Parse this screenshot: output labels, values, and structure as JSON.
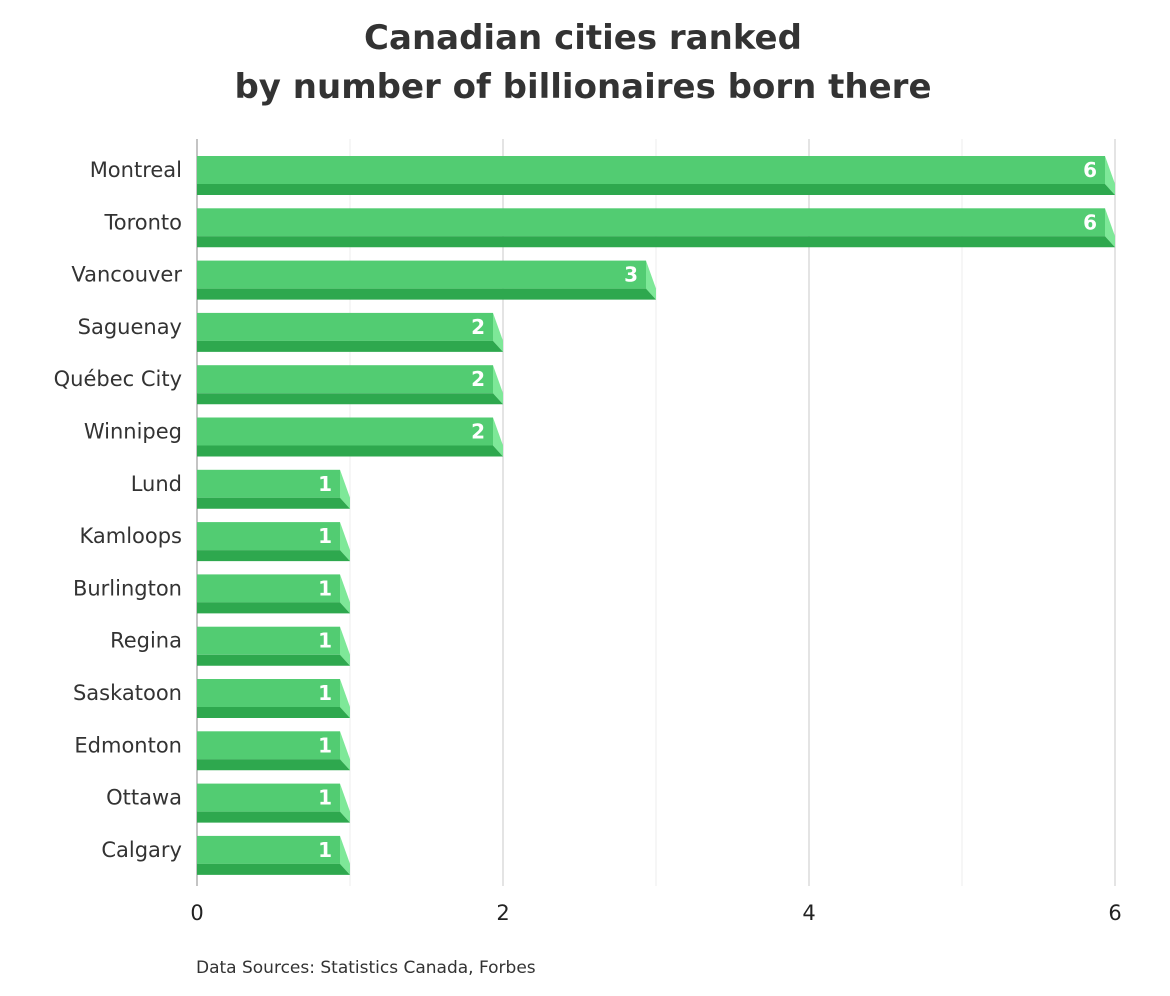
{
  "chart_data": {
    "type": "bar",
    "orientation": "horizontal",
    "title_lines": [
      "Canadian cities ranked",
      "by number of billionaires born there"
    ],
    "categories": [
      "Montreal",
      "Toronto",
      "Vancouver",
      "Saguenay",
      "Québec City",
      "Winnipeg",
      "Lund",
      "Kamloops",
      "Burlington",
      "Regina",
      "Saskatoon",
      "Edmonton",
      "Ottawa",
      "Calgary"
    ],
    "values": [
      6,
      6,
      3,
      2,
      2,
      2,
      1,
      1,
      1,
      1,
      1,
      1,
      1,
      1
    ],
    "xlim": [
      0,
      6
    ],
    "xticks": [
      "0",
      "2",
      "4",
      "6"
    ],
    "major_gridlines": [
      0,
      2,
      4,
      6
    ],
    "minor_gridlines": [
      1,
      3,
      5
    ],
    "grid": true,
    "data_labels": true,
    "legend": "none",
    "colors": {
      "bar_face": "#52cc72",
      "bar_shadow": "#2ea84e",
      "bar_end": "#7ee898",
      "major_grid": "#c8c8c8",
      "minor_grid": "#ececec",
      "axis": "#888888"
    },
    "source_note": "Data Sources: Statistics Canada, Forbes"
  }
}
